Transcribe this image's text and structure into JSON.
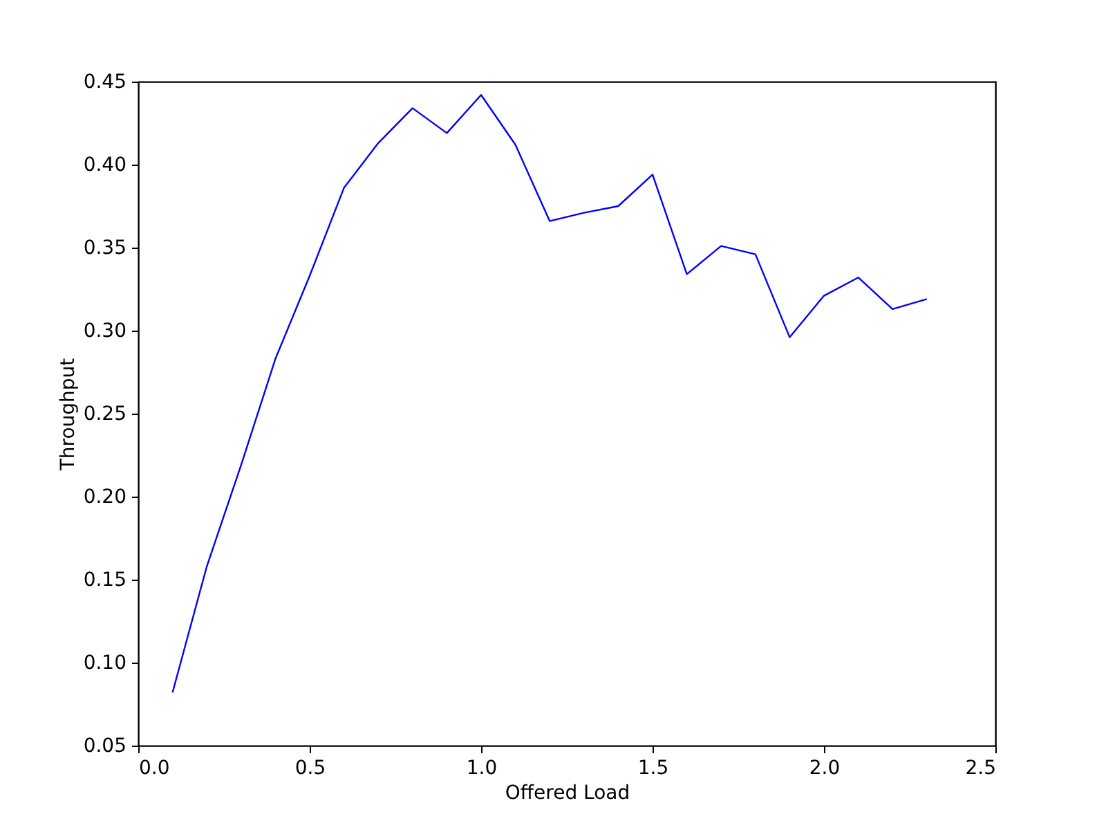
{
  "chart_data": {
    "type": "line",
    "xlabel": "Offered Load",
    "ylabel": "Throughput",
    "x": [
      0.1,
      0.2,
      0.3,
      0.4,
      0.5,
      0.6,
      0.7,
      0.8,
      0.9,
      1.0,
      1.1,
      1.2,
      1.3,
      1.4,
      1.5,
      1.6,
      1.7,
      1.8,
      1.9,
      2.0,
      2.1,
      2.2,
      2.3
    ],
    "series": [
      {
        "color": "#0000ff",
        "values": [
          0.082,
          0.158,
          0.219,
          0.283,
          0.333,
          0.386,
          0.413,
          0.434,
          0.419,
          0.442,
          0.412,
          0.366,
          0.371,
          0.375,
          0.394,
          0.334,
          0.351,
          0.346,
          0.296,
          0.321,
          0.332,
          0.313,
          0.319
        ]
      }
    ],
    "xlim": [
      0.0,
      2.5
    ],
    "xticks": [
      {
        "value": 0,
        "label": "0.0"
      },
      0.5,
      {
        "value": 1,
        "label": "1.0"
      },
      1.5,
      {
        "value": 2,
        "label": "2.0"
      },
      2.5
    ],
    "ylim": [
      0.05,
      0.45
    ],
    "yticks": [
      0.05,
      {
        "value": 0.1,
        "label": "0.10"
      },
      0.15,
      {
        "value": 0.2,
        "label": "0.20"
      },
      0.25,
      {
        "value": 0.3,
        "label": "0.30"
      },
      0.35,
      {
        "value": 0.4,
        "label": "0.40"
      },
      0.45
    ],
    "grid": false,
    "marker": "none",
    "line_style": "solid"
  }
}
